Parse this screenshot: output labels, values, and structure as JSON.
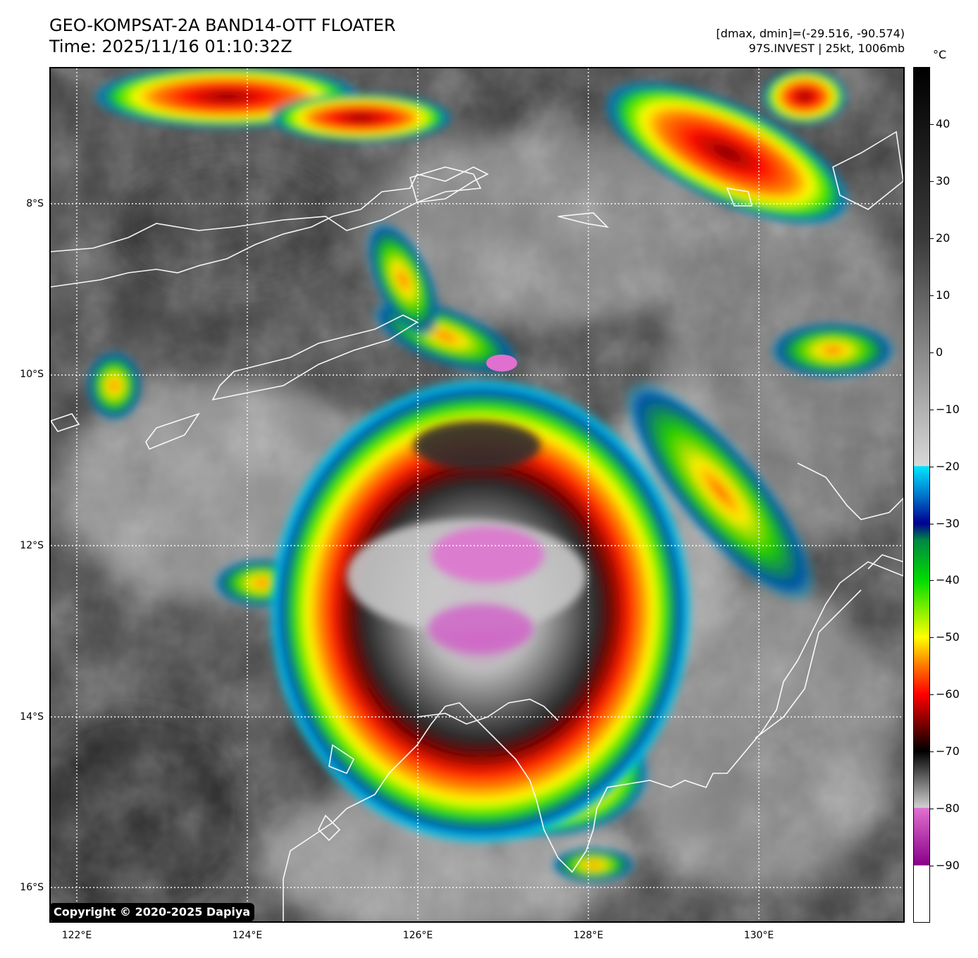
{
  "title": {
    "line1": "GEO-KOMPSAT-2A BAND14-OTT FLOATER",
    "line2": "Time: 2025/11/16 01:10:32Z"
  },
  "info": {
    "line1": "[dmax, dmin]=(-29.516, -90.574)",
    "line2": "97S.INVEST | 25kt, 1006mb"
  },
  "map": {
    "lon_range": [
      121.7,
      131.7
    ],
    "lat_range": [
      -16.4,
      -6.4
    ],
    "lat_ticks": [
      "8°S",
      "10°S",
      "12°S",
      "14°S",
      "16°S"
    ],
    "lon_ticks": [
      "122°E",
      "124°E",
      "126°E",
      "128°E",
      "130°E"
    ],
    "coastline_color": "#ffffff",
    "gridline_style": "dotted white"
  },
  "copyright": "Copyright © 2020-2025 Dapiya",
  "colorbar": {
    "unit": "°C",
    "range": [
      -100,
      50
    ],
    "labels": [
      "40",
      "30",
      "20",
      "10",
      "0",
      "−10",
      "−20",
      "−30",
      "−40",
      "−50",
      "−60",
      "−70",
      "−80",
      "−90"
    ],
    "stops": [
      {
        "t": 50,
        "color": "#000000"
      },
      {
        "t": 20,
        "color": "#3a3a3a"
      },
      {
        "t": -19.9,
        "color": "#d8d8d8"
      },
      {
        "t": -20,
        "color": "#00e5ff"
      },
      {
        "t": -25,
        "color": "#0077cc"
      },
      {
        "t": -30,
        "color": "#000090"
      },
      {
        "t": -33,
        "color": "#008844"
      },
      {
        "t": -40,
        "color": "#00dd00"
      },
      {
        "t": -50,
        "color": "#ffff00"
      },
      {
        "t": -55,
        "color": "#ff7700"
      },
      {
        "t": -60,
        "color": "#ff0000"
      },
      {
        "t": -66,
        "color": "#660000"
      },
      {
        "t": -70,
        "color": "#000000"
      },
      {
        "t": -79.9,
        "color": "#d0d0d0"
      },
      {
        "t": -80,
        "color": "#e070d0"
      },
      {
        "t": -90,
        "color": "#880088"
      },
      {
        "t": -90.1,
        "color": "#ffffff"
      },
      {
        "t": -100,
        "color": "#ffffff"
      }
    ]
  },
  "storm": {
    "name": "97S.INVEST",
    "center_lon": 126.4,
    "center_lat": -12.4
  }
}
